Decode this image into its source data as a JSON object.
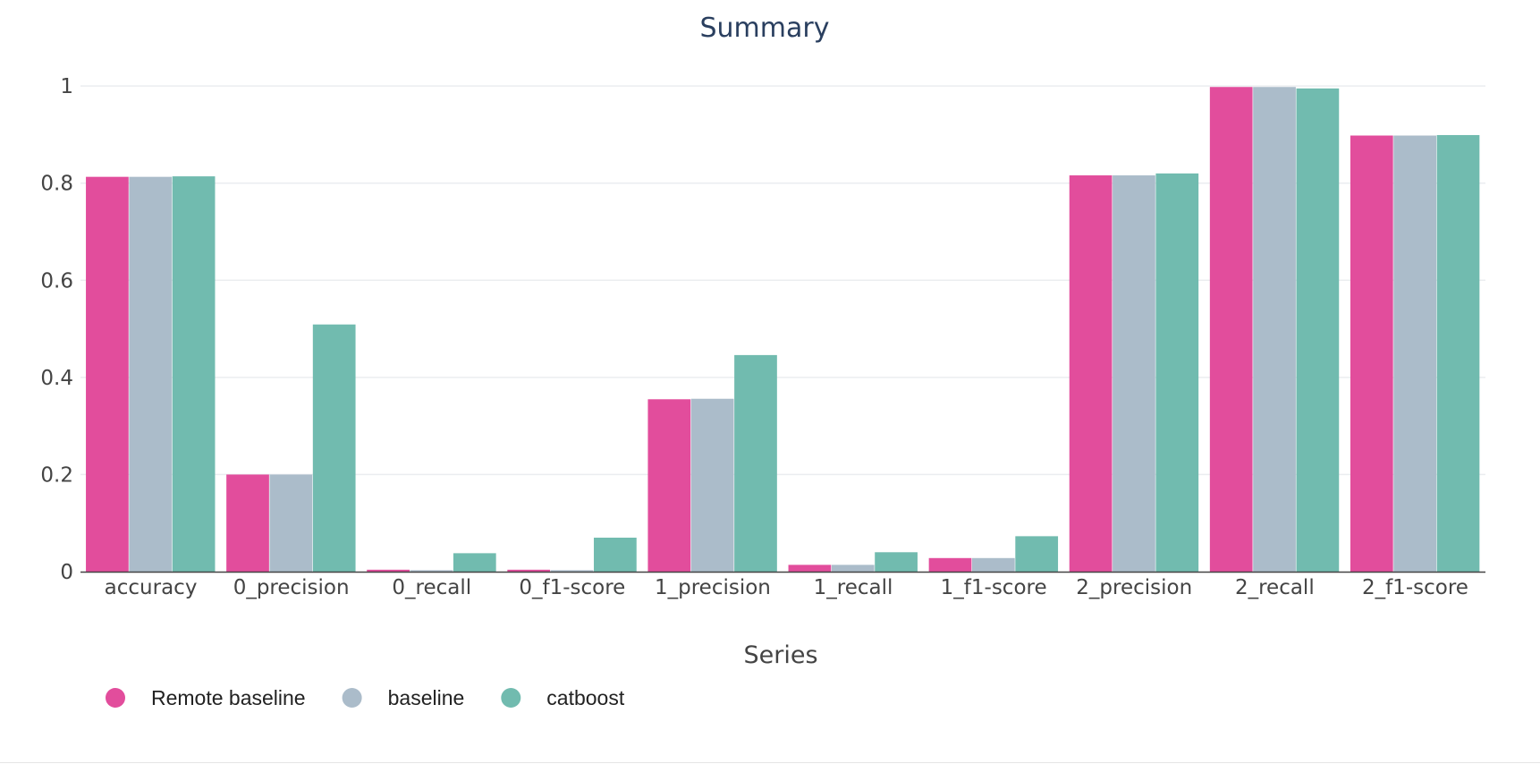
{
  "chart_data": {
    "type": "bar",
    "title": "Summary",
    "xlabel": "",
    "ylabel": "",
    "ylim": [
      0,
      1.05
    ],
    "yticks": [
      0,
      0.2,
      0.4,
      0.6,
      0.8,
      1
    ],
    "ytick_labels": [
      "0",
      "0.2",
      "0.4",
      "0.6",
      "0.8",
      "1"
    ],
    "grid": true,
    "categories": [
      "accuracy",
      "0_precision",
      "0_recall",
      "0_f1-score",
      "1_precision",
      "1_recall",
      "1_f1-score",
      "2_precision",
      "2_recall",
      "2_f1-score"
    ],
    "legend": {
      "title": "Series",
      "placement": "bottom-left",
      "orientation": "horizontal"
    },
    "series": [
      {
        "name": "Remote baseline",
        "color": "#e24d9c",
        "values": [
          0.813,
          0.2,
          0.004,
          0.004,
          0.355,
          0.014,
          0.028,
          0.816,
          0.998,
          0.898
        ]
      },
      {
        "name": "baseline",
        "color": "#abbcca",
        "values": [
          0.813,
          0.2,
          0.003,
          0.003,
          0.356,
          0.014,
          0.028,
          0.816,
          0.998,
          0.898
        ]
      },
      {
        "name": "catboost",
        "color": "#71bbaf",
        "values": [
          0.814,
          0.509,
          0.038,
          0.07,
          0.446,
          0.04,
          0.073,
          0.82,
          0.995,
          0.899
        ]
      }
    ]
  }
}
